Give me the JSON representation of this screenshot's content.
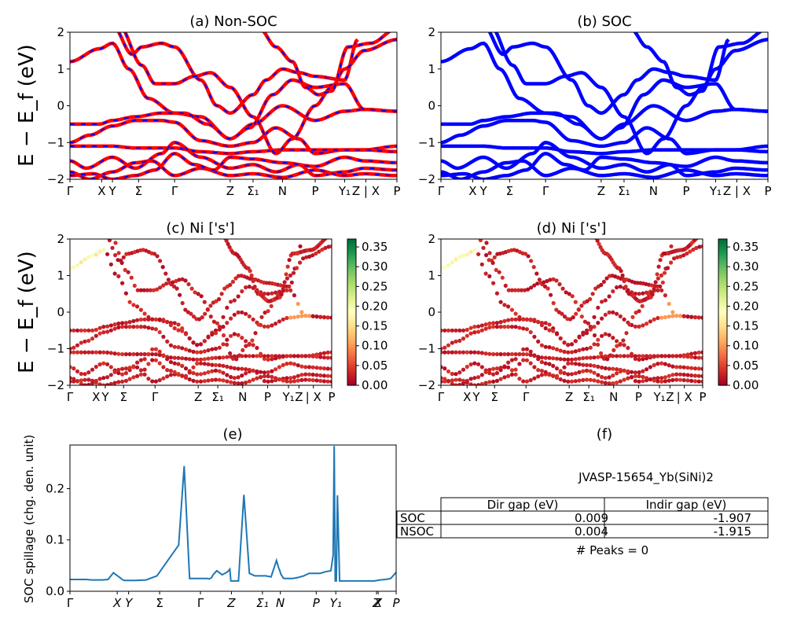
{
  "colors": {
    "nonsoc_solid": "#ff0000",
    "nonsoc_dash": "#0000ff",
    "soc": "#0000ff",
    "spillage": "#1f77b4",
    "colormap": [
      "#a50026",
      "#d73027",
      "#f46d43",
      "#fdae61",
      "#fee08b",
      "#ffffbf",
      "#d9ef8b",
      "#a6d96a",
      "#66bd63",
      "#1a9850",
      "#006837"
    ]
  },
  "ylabels": {
    "band": "E − E_f (eV)",
    "spillage": "SOC spillage (chg. den. unit)"
  },
  "chart_data": [
    {
      "id": "a",
      "type": "line",
      "title": "(a) Non-SOC",
      "ylim": [
        -2,
        2
      ],
      "yticks": [
        "2",
        "1",
        "0",
        "−1",
        "−2"
      ],
      "kpath_labels": [
        "Γ",
        "X",
        "Y",
        "Σ",
        "Γ",
        "Z",
        "Σ₁",
        "N",
        "P",
        "Y₁",
        "Z | X",
        "P"
      ],
      "series_style": "red solid with blue dashed overlay"
    },
    {
      "id": "b",
      "type": "line",
      "title": "(b) SOC",
      "ylim": [
        -2,
        2
      ],
      "yticks": [
        "2",
        "1",
        "0",
        "−1",
        "−2"
      ],
      "kpath_labels": [
        "Γ",
        "X",
        "Y",
        "Σ",
        "Γ",
        "Z",
        "Σ₁",
        "N",
        "P",
        "Y₁",
        "Z | X",
        "P"
      ],
      "series_style": "blue solid"
    },
    {
      "id": "c",
      "type": "scatter",
      "title": "(c)  Ni ['s']",
      "ylim": [
        -2,
        2
      ],
      "yticks": [
        "2",
        "1",
        "0",
        "−1",
        "−2"
      ],
      "kpath_labels": [
        "Γ",
        "X",
        "Y",
        "Σ",
        "Γ",
        "Z",
        "Σ₁",
        "N",
        "P",
        "Y₁",
        "Z",
        "| X",
        "P"
      ],
      "colorbar": {
        "min": 0.0,
        "max": 0.37,
        "ticks": [
          "0.35",
          "0.30",
          "0.25",
          "0.20",
          "0.15",
          "0.10",
          "0.05",
          "0.00"
        ]
      }
    },
    {
      "id": "d",
      "type": "scatter",
      "title": "(d) Ni ['s']",
      "ylim": [
        -2,
        2
      ],
      "yticks": [
        "2",
        "1",
        "0",
        "−1",
        "−2"
      ],
      "kpath_labels": [
        "Γ",
        "X",
        "Y",
        "Σ",
        "Γ",
        "Z",
        "Σ₁",
        "N",
        "P",
        "Y₁",
        "Z",
        "| X",
        "P"
      ],
      "colorbar": {
        "min": 0.0,
        "max": 0.37,
        "ticks": [
          "0.35",
          "0.30",
          "0.25",
          "0.20",
          "0.15",
          "0.10",
          "0.05",
          "0.00"
        ]
      }
    },
    {
      "id": "e",
      "type": "line",
      "title": "(e)",
      "ylabel": "SOC spillage (chg. den. unit)",
      "ylim": [
        0,
        0.285
      ],
      "yticks": [
        "0.2",
        "0.1",
        "0.0"
      ],
      "kpath_labels": [
        "Γ",
        "X",
        "Y",
        "Σ",
        "Γ",
        "Z",
        "Σ₁",
        "N",
        "P",
        "Y₁",
        "Z",
        "X",
        "P"
      ],
      "x": [
        0.0,
        0.5,
        1.0,
        1.5,
        2.0,
        2.5,
        3.0,
        3.5,
        4.0,
        4.5,
        4.7,
        4.8,
        4.9,
        5.0,
        5.2,
        6.0,
        7.0,
        8.0,
        9.0,
        10.0,
        10.5,
        11.0,
        11.5,
        12.0,
        12.1,
        12.3,
        12.5,
        12.6,
        12.8,
        13.0,
        13.2,
        13.5,
        14.0,
        14.5,
        14.7,
        14.8,
        15.0,
        15.5,
        16.0,
        16.5,
        17.0,
        17.5,
        18.0,
        18.5,
        19.0,
        19.2,
        19.3,
        19.4,
        19.5,
        19.6,
        19.7,
        20.0,
        20.5,
        21.0,
        21.5,
        22.0,
        22.5,
        23.0,
        23.5,
        24.0,
        24.2,
        24.3,
        24.4,
        24.5,
        24.6,
        24.8,
        25.0,
        25.5,
        26.0,
        26.5,
        27.0,
        27.5,
        28.0,
        28.5,
        29.0,
        29.5,
        30.0
      ],
      "y": [
        0.023,
        0.023,
        0.023,
        0.023,
        0.022,
        0.022,
        0.022,
        0.023,
        0.036,
        0.028,
        0.025,
        0.023,
        0.022,
        0.021,
        0.021,
        0.021,
        0.022,
        0.03,
        0.06,
        0.09,
        0.244,
        0.025,
        0.025,
        0.025,
        0.025,
        0.025,
        0.025,
        0.025,
        0.024,
        0.026,
        0.033,
        0.04,
        0.032,
        0.038,
        0.043,
        0.02,
        0.02,
        0.02,
        0.188,
        0.035,
        0.03,
        0.03,
        0.03,
        0.028,
        0.06,
        0.045,
        0.04,
        0.033,
        0.03,
        0.026,
        0.025,
        0.025,
        0.025,
        0.027,
        0.03,
        0.035,
        0.035,
        0.035,
        0.038,
        0.04,
        0.07,
        0.283,
        0.02,
        0.02,
        0.187,
        0.02,
        0.02,
        0.02,
        0.02,
        0.02,
        0.02,
        0.02,
        0.02,
        0.022,
        0.023,
        0.025,
        0.037
      ]
    }
  ],
  "panel_f": {
    "title": "(f)",
    "material": "JVASP-15654_Yb(SiNi)2",
    "table": {
      "headers": [
        "Dir gap (eV)",
        "Indir gap (eV)"
      ],
      "rows": [
        {
          "label": "SOC",
          "dir": "0.009",
          "indir": "-1.907"
        },
        {
          "label": "NSOC",
          "dir": "0.004",
          "indir": "-1.915"
        }
      ]
    },
    "peaks": "# Peaks = 0"
  }
}
